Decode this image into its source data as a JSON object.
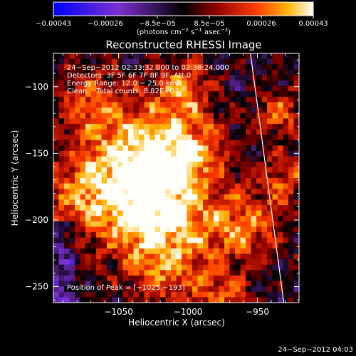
{
  "chart_data": {
    "type": "heatmap",
    "title": "Reconstructed RHESSI Image",
    "xlabel": "Heliocentric X (arcsec)",
    "ylabel": "Heliocentric Y (arcsec)",
    "xlim": [
      -1097,
      -920
    ],
    "ylim": [
      -262,
      -75
    ],
    "x_ticks": [
      -1050,
      -1000,
      -950
    ],
    "x_tick_labels": [
      "−1050",
      "−1000",
      "−950"
    ],
    "y_ticks": [
      -100,
      -150,
      -200,
      -250
    ],
    "y_tick_labels": [
      "−100",
      "−150",
      "−200",
      "−250"
    ],
    "colorbar": {
      "range": [
        -0.00043,
        0.00043
      ],
      "tick_labels": [
        "−0.00043",
        "−0.00026",
        "−8.5e−05",
        "8.5e−05",
        "0.00026",
        "0.00043"
      ],
      "unit_text": "(photons cm",
      "unit_sup1": "−2",
      "unit_mid": " s",
      "unit_sup2": "−1",
      "unit_end": " asec",
      "unit_sup3": "−2",
      "unit_close": ")"
    },
    "info_lines": [
      "24−Sep−2012 02:33:32.000 to 02:38:24.000",
      "Detectors: 3F 5F 6F 7F 8F 9F, Att 0",
      "Energy Range: 12.0 − 25.0 keV",
      "Clean    Total counts: 8.82E+03"
    ],
    "peak_label": "Position of Peak = [−1025,−193]",
    "peak_position": [
      -1025,
      -193
    ],
    "limb_line": [
      [
        -955,
        -75
      ],
      [
        -931,
        -262
      ]
    ],
    "grid": false,
    "notes": "Map value field is stochastic CLEAN-image noise; rendered as a procedural pattern with brightest pixel at the peak position."
  },
  "footer_timestamp": "24−Sep−2012 04:03"
}
